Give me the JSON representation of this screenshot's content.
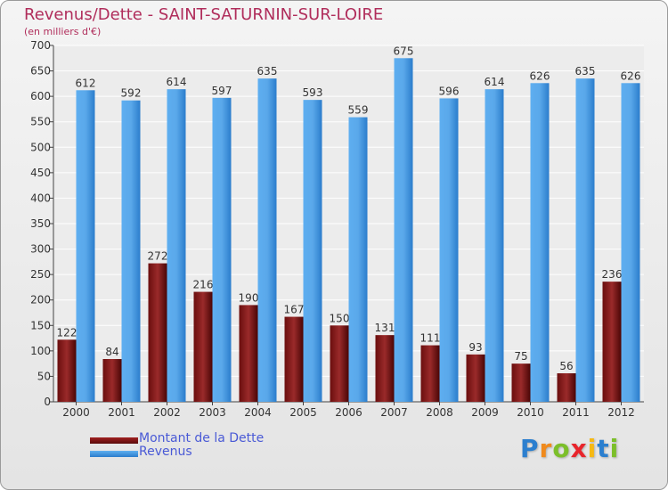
{
  "chart_data": {
    "type": "bar",
    "title": "Revenus/Dette - SAINT-SATURNIN-SUR-LOIRE",
    "subtitle": "(en milliers d'€)",
    "categories": [
      "2000",
      "2001",
      "2002",
      "2003",
      "2004",
      "2005",
      "2006",
      "2007",
      "2008",
      "2009",
      "2010",
      "2011",
      "2012"
    ],
    "series": [
      {
        "name": "Montant de la Dette",
        "values": [
          122,
          84,
          272,
          216,
          190,
          167,
          150,
          131,
          111,
          93,
          75,
          56,
          236
        ],
        "color": "#7a1515"
      },
      {
        "name": "Revenus",
        "values": [
          612,
          592,
          614,
          597,
          635,
          593,
          559,
          675,
          596,
          614,
          626,
          635,
          626
        ],
        "color": "#3d94e0"
      }
    ],
    "ylim": [
      0,
      700
    ],
    "yticks": [
      0,
      50,
      100,
      150,
      200,
      250,
      300,
      350,
      400,
      450,
      500,
      550,
      600,
      650,
      700
    ],
    "xlabel": "",
    "ylabel": "",
    "grid": true,
    "legend": "bottom-left"
  },
  "legend": {
    "items": [
      {
        "label": "Montant de la Dette",
        "color": "#7a1515"
      },
      {
        "label": "Revenus",
        "color": "#3d94e0"
      }
    ]
  },
  "logo": {
    "letters": [
      "P",
      "r",
      "o",
      "x",
      "i",
      "t",
      "i"
    ],
    "colors": [
      "#2b7fcf",
      "#f08a1c",
      "#7cbf2a",
      "#e8242b",
      "#f6b914",
      "#2b7fcf",
      "#7cbf2a"
    ]
  }
}
